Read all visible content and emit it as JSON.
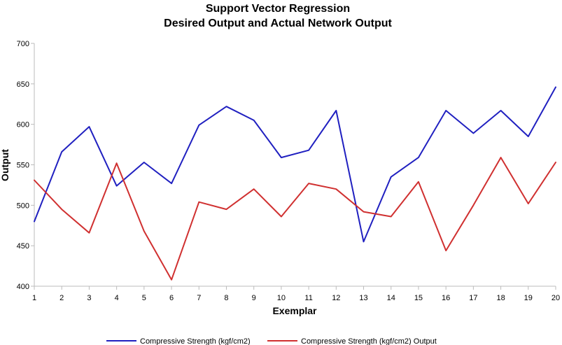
{
  "chart_data": {
    "type": "line",
    "title": "Support Vector Regression",
    "subtitle": "Desired Output and Actual Network Output",
    "xlabel": "Exemplar",
    "ylabel": "Output",
    "x": [
      1,
      2,
      3,
      4,
      5,
      6,
      7,
      8,
      9,
      10,
      11,
      12,
      13,
      14,
      15,
      16,
      17,
      18,
      19,
      20
    ],
    "x_tick_labels": [
      "1",
      "2",
      "3",
      "4",
      "5",
      "6",
      "7",
      "8",
      "9",
      "10",
      "11",
      "12",
      "13",
      "14",
      "15",
      "16",
      "17",
      "18",
      "19",
      "20"
    ],
    "xlim": [
      1,
      20
    ],
    "ylim": [
      400,
      700
    ],
    "y_ticks": [
      400,
      450,
      500,
      550,
      600,
      650,
      700
    ],
    "y_tick_labels": [
      "400",
      "450",
      "500",
      "550",
      "600",
      "650",
      "700"
    ],
    "grid": false,
    "legend_position": "bottom",
    "series": [
      {
        "name": "Compressive Strength (kgf/cm2)",
        "color": "#2020c0",
        "values": [
          480,
          566,
          597,
          524,
          553,
          527,
          599,
          622,
          605,
          559,
          568,
          617,
          455,
          535,
          559,
          617,
          589,
          617,
          585,
          646
        ]
      },
      {
        "name": "Compressive Strength (kgf/cm2) Output",
        "color": "#d03030",
        "values": [
          531,
          495,
          466,
          552,
          468,
          408,
          504,
          495,
          520,
          486,
          527,
          520,
          492,
          486,
          529,
          444,
          500,
          559,
          502,
          553
        ]
      }
    ]
  }
}
